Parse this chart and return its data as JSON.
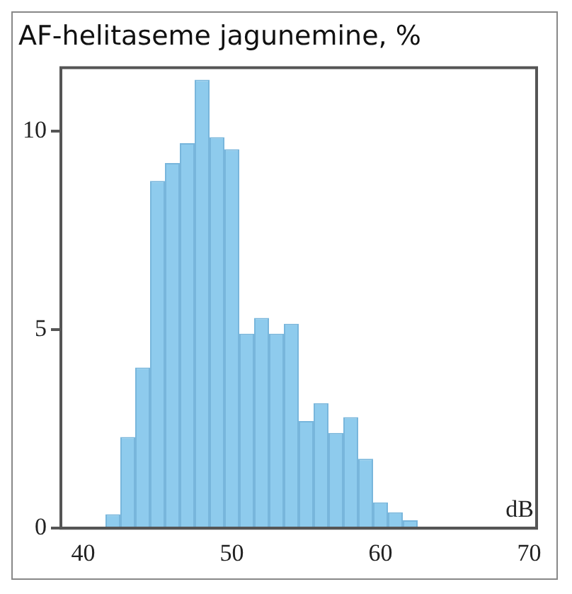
{
  "chart_data": {
    "type": "histogram",
    "title": "AF-helitaseme jagunemine, %",
    "xlabel": "dB",
    "bins": [
      41.5,
      42.5,
      43.5,
      44.5,
      45.5,
      46.5,
      47.5,
      48.5,
      49.5,
      50.5,
      51.5,
      52.5,
      53.5,
      54.5,
      55.5,
      56.5,
      57.5,
      58.5,
      59.5,
      60.5,
      61.5,
      62.5,
      63.5,
      64.5,
      65.5,
      66.5
    ],
    "values": [
      0.35,
      2.3,
      4.05,
      8.75,
      9.2,
      9.7,
      11.3,
      9.85,
      9.55,
      4.9,
      5.3,
      4.9,
      5.15,
      2.7,
      3.15,
      2.4,
      2.8,
      1.75,
      0.65,
      0.4,
      0.2,
      null,
      null,
      null,
      null
    ],
    "color": "#8ecbed",
    "xlim": [
      38.5,
      70.5
    ],
    "xticks": [
      40,
      50,
      60,
      70
    ],
    "ylim": [
      0,
      11.6
    ],
    "yticks": [
      0,
      5,
      10
    ],
    "grid": false
  }
}
